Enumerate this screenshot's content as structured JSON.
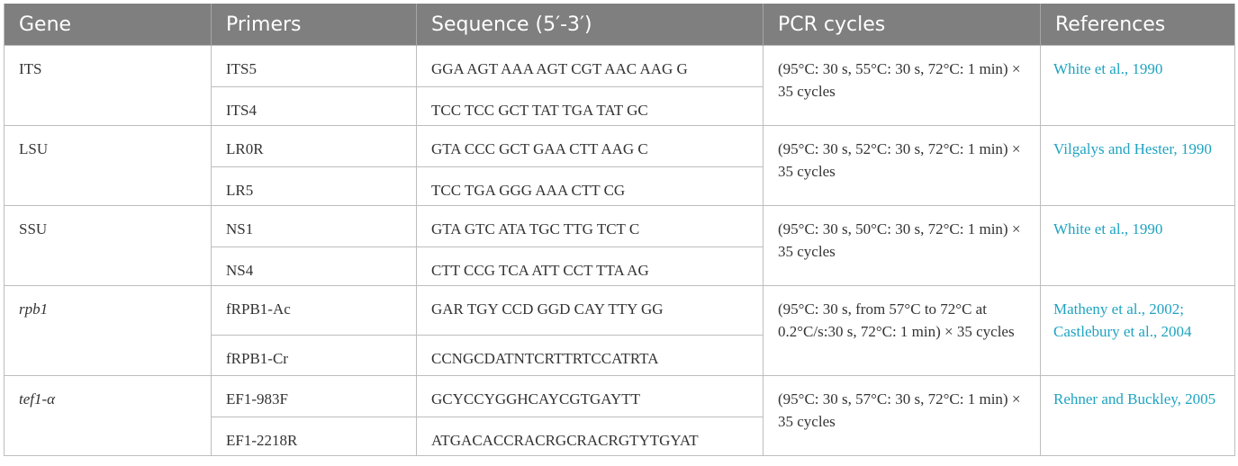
{
  "headers": [
    "Gene",
    "Primers",
    "Sequence (5′-3′)",
    "PCR cycles",
    "References"
  ],
  "rows": [
    {
      "gene": "ITS",
      "gene_italic": false,
      "primers": [
        {
          "name": "ITS5",
          "sequence": "GGA AGT AAA AGT CGT AAC AAG G"
        },
        {
          "name": "ITS4",
          "sequence": "TCC TCC GCT TAT TGA TAT GC"
        }
      ],
      "pcr": "(95°C: 30 s, 55°C: 30 s, 72°C: 1 min) × 35 cycles",
      "references": "White et al., 1990"
    },
    {
      "gene": "LSU",
      "gene_italic": false,
      "primers": [
        {
          "name": "LR0R",
          "sequence": "GTA CCC GCT GAA CTT AAG C"
        },
        {
          "name": "LR5",
          "sequence": "TCC TGA GGG AAA CTT CG"
        }
      ],
      "pcr": "(95°C: 30 s, 52°C: 30 s, 72°C: 1 min) × 35 cycles",
      "references": "Vilgalys and Hester, 1990"
    },
    {
      "gene": "SSU",
      "gene_italic": false,
      "primers": [
        {
          "name": "NS1",
          "sequence": "GTA GTC ATA TGC TTG TCT C"
        },
        {
          "name": "NS4",
          "sequence": "CTT CCG TCA ATT CCT TTA AG"
        }
      ],
      "pcr": "(95°C: 30 s, 50°C: 30 s, 72°C: 1 min) × 35 cycles",
      "references": "White et al., 1990"
    },
    {
      "gene": "rpb1",
      "gene_italic": true,
      "primers": [
        {
          "name": "fRPB1-Ac",
          "sequence": "GAR TGY CCD GGD CAY TTY GG"
        },
        {
          "name": "fRPB1-Cr",
          "sequence": "CCNGCDATNTCRTTRTCCATRTA"
        }
      ],
      "pcr": "(95°C: 30 s, from 57°C to 72°C at 0.2°C/s:30 s, 72°C: 1 min) × 35 cycles",
      "references": "Matheny et al., 2002; Castlebury et al., 2004"
    },
    {
      "gene": "tef1-α",
      "gene_italic": true,
      "primers": [
        {
          "name": "EF1-983F",
          "sequence": "GCYCCYGGHCAYCGTGAYTT"
        },
        {
          "name": "EF1-2218R",
          "sequence": "ATGACACCRACRGCRACRGTYTGYAT"
        }
      ],
      "pcr": "(95°C: 30 s, 57°C: 30 s, 72°C: 1 min) × 35 cycles",
      "references": "Rehner and Buckley, 2005"
    }
  ],
  "colors": {
    "header_bg": "#7f7f7f",
    "header_text": "#ffffff",
    "reference_link": "#1fa3c1",
    "grid": "#bdbdbd"
  }
}
